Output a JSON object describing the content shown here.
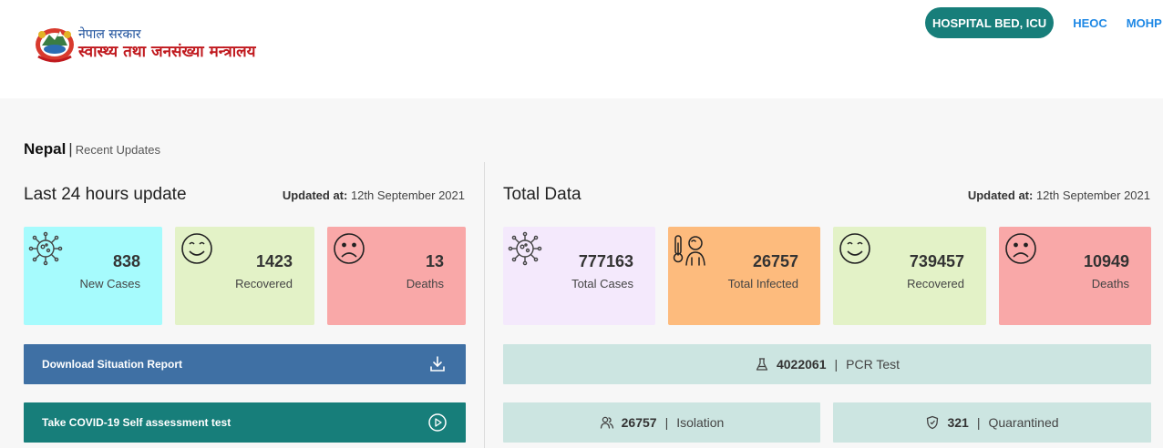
{
  "header": {
    "logo_line1": "नेपाल सरकार",
    "logo_line2": "स्वास्थ्य तथा जनसंख्या मन्त्रालय",
    "nav": {
      "hospital_bed": "HOSPITAL BED, ICU",
      "heoc": "HEOC",
      "mohp": "MOHP"
    }
  },
  "crumb": {
    "country": "Nepal",
    "separator": "|",
    "sub": "Recent Updates"
  },
  "last24": {
    "title": "Last 24 hours update",
    "updated_label": "Updated at:",
    "updated_value": "12th September 2021",
    "cards": [
      {
        "value": "838",
        "label": "New Cases",
        "icon": "virus-icon",
        "color": "#a6fbfd"
      },
      {
        "value": "1423",
        "label": "Recovered",
        "icon": "smiley-icon",
        "color": "#e3f2c7"
      },
      {
        "value": "13",
        "label": "Deaths",
        "icon": "sad-face-icon",
        "color": "#f9a8a8"
      }
    ]
  },
  "total": {
    "title": "Total Data",
    "updated_label": "Updated at:",
    "updated_value": "12th September 2021",
    "cards": [
      {
        "value": "777163",
        "label": "Total Cases",
        "icon": "virus-icon",
        "color": "#f4e9fc"
      },
      {
        "value": "26757",
        "label": "Total Infected",
        "icon": "thermometer-patient-icon",
        "color": "#fdbb7d"
      },
      {
        "value": "739457",
        "label": "Recovered",
        "icon": "smiley-icon",
        "color": "#e3f2c7"
      },
      {
        "value": "10949",
        "label": "Deaths",
        "icon": "sad-face-icon",
        "color": "#f9a8a8"
      }
    ]
  },
  "actions": {
    "download": {
      "label": "Download Situation Report",
      "color": "#3f70a4",
      "icon": "download-icon"
    },
    "selftest": {
      "label": "Take COVID-19 Self assessment test",
      "color": "#177e7a",
      "icon": "play-circle-icon"
    }
  },
  "stats": {
    "pcr": {
      "value": "4022061",
      "separator": "|",
      "label": "PCR Test",
      "icon": "flask-icon"
    },
    "isolation": {
      "value": "26757",
      "separator": "|",
      "label": "Isolation",
      "icon": "people-icon"
    },
    "quarantined": {
      "value": "321",
      "separator": "|",
      "label": "Quarantined",
      "icon": "shield-icon"
    }
  }
}
